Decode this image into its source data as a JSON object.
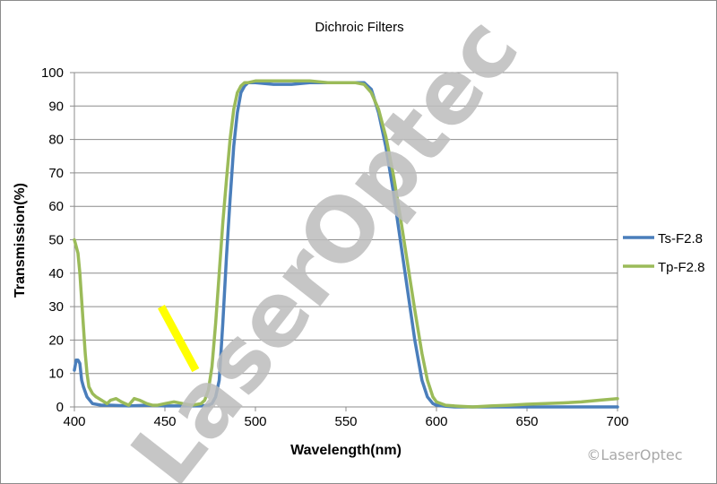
{
  "chart_data": {
    "type": "line",
    "title": "Dichroic Filters",
    "xlabel": "Wavelength(nm)",
    "ylabel": "Transmission(%)",
    "xlim": [
      400,
      700
    ],
    "ylim": [
      0,
      100
    ],
    "x_ticks": [
      "400",
      "450",
      "500",
      "550",
      "600",
      "650",
      "700"
    ],
    "y_ticks": [
      "0",
      "10",
      "20",
      "30",
      "40",
      "50",
      "60",
      "70",
      "80",
      "90",
      "100"
    ],
    "grid": "horizontal",
    "legend_position": "right",
    "series": [
      {
        "name": "Ts-F2.8",
        "color": "#4A7EBB",
        "x": [
          400,
          401,
          402,
          403,
          404,
          405,
          407,
          410,
          415,
          420,
          430,
          440,
          450,
          460,
          470,
          474,
          476,
          478,
          480,
          482,
          484,
          486,
          488,
          490,
          492,
          494,
          496,
          500,
          510,
          520,
          530,
          540,
          550,
          555,
          560,
          564,
          568,
          572,
          576,
          580,
          584,
          588,
          592,
          595,
          598,
          600,
          605,
          610,
          620,
          650,
          700
        ],
        "y": [
          11,
          14,
          14,
          13,
          8,
          6,
          3,
          1,
          0.5,
          0.5,
          0.3,
          0.5,
          0.3,
          0.3,
          0.3,
          0.5,
          1,
          3,
          8,
          25,
          45,
          62,
          78,
          88,
          94,
          96,
          97,
          97,
          96.5,
          96.5,
          97,
          97,
          97,
          97,
          97,
          95,
          88,
          78,
          65,
          50,
          35,
          20,
          8,
          3,
          1,
          0.5,
          0.2,
          0,
          0,
          0,
          0
        ]
      },
      {
        "name": "Tp-F2.8",
        "color": "#9BBB59",
        "x": [
          400,
          401,
          402,
          403,
          404,
          405,
          406,
          407,
          408,
          410,
          412,
          415,
          418,
          420,
          423,
          426,
          430,
          433,
          436,
          440,
          443,
          446,
          450,
          455,
          460,
          465,
          470,
          472,
          474,
          476,
          478,
          480,
          482,
          484,
          486,
          488,
          490,
          492,
          494,
          496,
          500,
          510,
          520,
          530,
          540,
          550,
          555,
          560,
          564,
          568,
          572,
          576,
          580,
          584,
          588,
          592,
          595,
          598,
          600,
          605,
          610,
          620,
          630,
          640,
          650,
          660,
          670,
          680,
          690,
          700
        ],
        "y": [
          50,
          48,
          46,
          40,
          32,
          24,
          16,
          10,
          6,
          4,
          3,
          2,
          1,
          2,
          2.5,
          1.5,
          0.5,
          2.5,
          2,
          1,
          0.5,
          0.5,
          1,
          1.5,
          1,
          0.5,
          1,
          2,
          5,
          12,
          25,
          40,
          55,
          68,
          80,
          89,
          94,
          96,
          97,
          97,
          97.5,
          97.5,
          97.5,
          97.5,
          97,
          97,
          97,
          96.5,
          94,
          89,
          81,
          70,
          57,
          43,
          29,
          16,
          8,
          3,
          1.5,
          0.5,
          0.3,
          0,
          0.3,
          0.5,
          0.8,
          1,
          1.2,
          1.5,
          2,
          2.5
        ]
      }
    ],
    "annotation": {
      "color": "#FFFF00",
      "from": {
        "x": 448,
        "y": 30
      },
      "to": {
        "x": 467,
        "y": 11
      }
    }
  },
  "watermark": {
    "text": "LaserOptec",
    "copyright": "©LaserOptec"
  }
}
